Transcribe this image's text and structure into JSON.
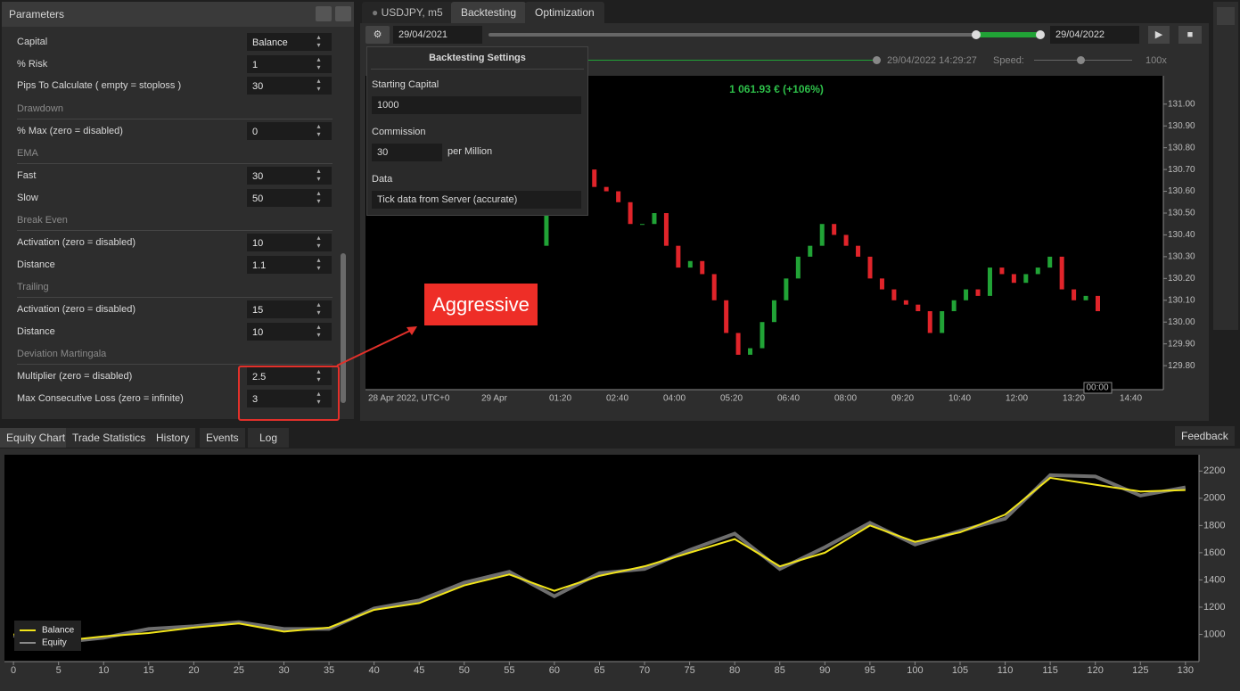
{
  "panel": {
    "title": "Parameters"
  },
  "params": [
    {
      "label": "Capital",
      "value": "Balance"
    },
    {
      "label": "% Risk",
      "value": "1"
    },
    {
      "label": "Pips To Calculate ( empty = stoploss )",
      "value": "30"
    },
    {
      "section": "Drawdown"
    },
    {
      "label": "% Max (zero = disabled)",
      "value": "0"
    },
    {
      "section": "EMA"
    },
    {
      "label": "Fast",
      "value": "30"
    },
    {
      "label": "Slow",
      "value": "50"
    },
    {
      "section": "Break Even"
    },
    {
      "label": "Activation (zero = disabled)",
      "value": "10"
    },
    {
      "label": "Distance",
      "value": "1.1"
    },
    {
      "section": "Trailing"
    },
    {
      "label": "Activation (zero = disabled)",
      "value": "15"
    },
    {
      "label": "Distance",
      "value": "10"
    },
    {
      "section": "Deviation Martingala"
    },
    {
      "label": "Multiplier (zero = disabled)",
      "value": "2.5"
    },
    {
      "label": "Max Consecutive Loss (zero = infinite)",
      "value": "3"
    }
  ],
  "tabs": [
    "USDJPY, m5",
    "Backtesting",
    "Optimization"
  ],
  "toolbar": {
    "start": "29/04/2021",
    "end": "29/04/2022",
    "time": "29/04/2022 14:29:27",
    "speed_label": "Speed:",
    "speed": "100x"
  },
  "settings": {
    "title": "Backtesting Settings",
    "capital_label": "Starting Capital",
    "capital": "1000",
    "commission_label": "Commission",
    "commission": "30",
    "commission_unit": "per Million",
    "data_label": "Data",
    "data": "Tick data from Server (accurate)"
  },
  "annotation": "Aggressive",
  "bottom_tabs": [
    "Equity Chart",
    "Trade Statistics",
    "History",
    "Events",
    "Log"
  ],
  "feedback": "Feedback",
  "chart_data": [
    {
      "type": "candlestick",
      "badge": "1 061.93 € (+106%)",
      "closes": [
        130.35,
        130.55,
        130.75,
        130.75,
        130.7,
        130.62,
        130.6,
        130.55,
        130.45,
        130.45,
        130.5,
        130.35,
        130.25,
        130.28,
        130.22,
        130.1,
        129.95,
        129.85,
        129.88,
        130.0,
        130.1,
        130.2,
        130.3,
        130.35,
        130.45,
        130.4,
        130.35,
        130.3,
        130.2,
        130.15,
        130.1,
        130.08,
        130.05,
        129.95,
        130.05,
        130.1,
        130.15,
        130.12,
        130.25,
        130.22,
        130.18,
        130.22,
        130.25,
        130.3,
        130.15,
        130.1,
        130.12,
        130.05
      ],
      "up_color": "#21a336",
      "down_color": "#e0242a",
      "ylim": [
        129.69,
        131.13
      ],
      "yticks": [
        {
          "value": 131.0,
          "label": "131.00"
        },
        {
          "value": 130.9,
          "label": "130.90"
        },
        {
          "value": 130.8,
          "label": "130.80"
        },
        {
          "value": 130.7,
          "label": "130.70"
        },
        {
          "value": 130.6,
          "label": "130.60"
        },
        {
          "value": 130.5,
          "label": "130.50"
        },
        {
          "value": 130.4,
          "label": "130.40"
        },
        {
          "value": 130.3,
          "label": "130.30"
        },
        {
          "value": 130.2,
          "label": "130.20"
        },
        {
          "value": 130.1,
          "label": "130.10"
        },
        {
          "value": 130.0,
          "label": "130.00"
        },
        {
          "value": 129.9,
          "label": "129.90"
        },
        {
          "value": 129.8,
          "label": "129.80"
        }
      ],
      "xlabels": [
        "28 Apr 2022, UTC+0",
        "29 Apr",
        "01:20",
        "02:40",
        "04:00",
        "05:20",
        "06:40",
        "08:00",
        "09:20",
        "10:40",
        "12:00",
        "13:20",
        "14:40"
      ],
      "cursor_label": "00:00"
    },
    {
      "type": "line",
      "x": [
        0,
        5,
        10,
        15,
        20,
        25,
        30,
        35,
        40,
        45,
        50,
        55,
        60,
        65,
        70,
        75,
        80,
        85,
        90,
        95,
        100,
        105,
        110,
        115,
        120,
        125,
        130
      ],
      "series": [
        {
          "name": "Balance",
          "color": "#f2e51a",
          "values": [
            1000,
            950,
            985,
            1010,
            1050,
            1080,
            1020,
            1050,
            1180,
            1230,
            1360,
            1440,
            1320,
            1430,
            1500,
            1600,
            1700,
            1500,
            1600,
            1800,
            1680,
            1750,
            1880,
            2150,
            2100,
            2050,
            2060
          ]
        },
        {
          "name": "Equity",
          "color": "#8a8a8a",
          "values": [
            990,
            940,
            975,
            1040,
            1060,
            1090,
            1040,
            1040,
            1190,
            1250,
            1380,
            1460,
            1280,
            1450,
            1480,
            1620,
            1740,
            1480,
            1640,
            1820,
            1660,
            1760,
            1850,
            2170,
            2160,
            2020,
            2080
          ]
        }
      ],
      "xlim": [
        -1,
        131.5
      ],
      "ylim": [
        800,
        2320
      ],
      "xticks": [
        0,
        5,
        10,
        15,
        20,
        25,
        30,
        35,
        40,
        45,
        50,
        55,
        60,
        65,
        70,
        75,
        80,
        85,
        90,
        95,
        100,
        105,
        110,
        115,
        120,
        125,
        130
      ],
      "yticks": [
        1000,
        1200,
        1400,
        1600,
        1800,
        2000,
        2200
      ]
    }
  ]
}
